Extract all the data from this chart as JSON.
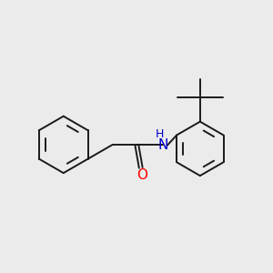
{
  "bg_color": "#ebebeb",
  "bond_color": "#1a1a1a",
  "bond_width": 1.4,
  "atom_colors": {
    "O": "#ff0000",
    "N": "#0000cc",
    "H": "#0000cc"
  },
  "font_size_atom": 11,
  "font_size_h": 9,
  "figsize": [
    3.0,
    3.0
  ],
  "dpi": 100
}
